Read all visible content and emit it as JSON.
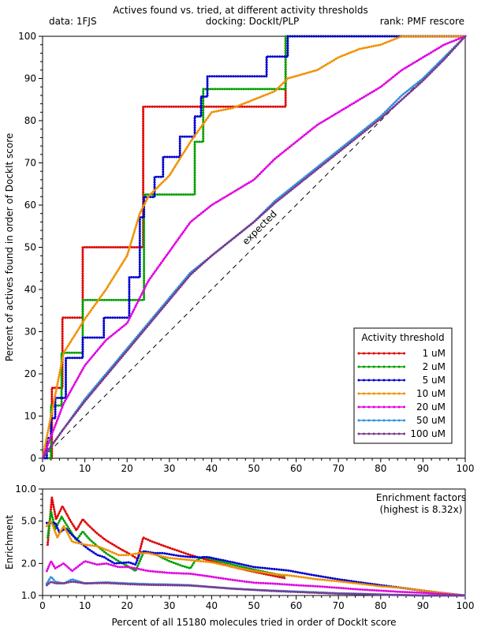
{
  "header": {
    "title": "Actives found vs. tried, at different activity thresholds",
    "data_label": "data: 1FJS",
    "docking_label": "docking: DockIt/PLP",
    "rank_label": "rank: PMF rescore"
  },
  "chart_data": [
    {
      "type": "line",
      "title": "Actives found vs. tried, at different activity thresholds",
      "xlabel": "",
      "ylabel": "Percent of actives found in order of DockIt score",
      "xlim": [
        0,
        100
      ],
      "ylim": [
        0,
        100
      ],
      "xticks": [
        "0",
        "10",
        "20",
        "30",
        "40",
        "50",
        "60",
        "70",
        "80",
        "90",
        "100"
      ],
      "yticks": [
        "0",
        "10",
        "20",
        "30",
        "40",
        "50",
        "60",
        "70",
        "80",
        "90",
        "100"
      ],
      "grid": false,
      "legend_title": "Activity threshold",
      "legend_position": "bottom-right",
      "reference_line": {
        "label": "expected",
        "x": [
          0,
          100
        ],
        "y": [
          0,
          100
        ],
        "style": "dashed"
      },
      "series": [
        {
          "name": "1 uM",
          "color": "#e00000",
          "step": true,
          "x": [
            0,
            0.6,
            2.2,
            4.7,
            9.5,
            22.5,
            23.8,
            57.5,
            100
          ],
          "y": [
            0,
            0,
            16.7,
            33.3,
            50,
            50,
            83.3,
            100,
            100
          ]
        },
        {
          "name": "2 uM",
          "color": "#00a000",
          "step": true,
          "x": [
            0,
            1.2,
            2.0,
            4.5,
            9.5,
            22.0,
            24.0,
            35.0,
            36.0,
            38.0,
            57.5,
            100
          ],
          "y": [
            0,
            0,
            12.5,
            25,
            37.5,
            37.5,
            62.5,
            62.5,
            75,
            87.5,
            100,
            100
          ]
        },
        {
          "name": "5 uM",
          "color": "#0000d0",
          "step": true,
          "x": [
            0,
            1.0,
            2.0,
            3.0,
            5.5,
            9.5,
            14.5,
            20.5,
            23.0,
            24.0,
            26.5,
            28.5,
            32.5,
            36.0,
            37.5,
            39.0,
            53.0,
            58.0,
            100
          ],
          "y": [
            0,
            4.8,
            9.5,
            14.3,
            23.8,
            28.6,
            33.3,
            42.9,
            57.1,
            61.9,
            66.7,
            71.4,
            76.2,
            81.0,
            85.7,
            90.5,
            95.2,
            100,
            100
          ]
        },
        {
          "name": "10 uM",
          "color": "#f09000",
          "step": false,
          "x": [
            0,
            2,
            5,
            10,
            15,
            20,
            23,
            25,
            30,
            35,
            40,
            45,
            50,
            55,
            58,
            65,
            70,
            75,
            80,
            85,
            90,
            95,
            100
          ],
          "y": [
            0,
            10,
            25,
            33,
            40,
            48,
            58,
            62,
            67,
            75,
            82,
            83,
            85,
            87,
            90,
            92,
            95,
            97,
            98,
            100,
            100,
            100,
            100
          ]
        },
        {
          "name": "20 uM",
          "color": "#e000e0",
          "step": false,
          "x": [
            0,
            5,
            10,
            15,
            20,
            25,
            30,
            35,
            40,
            45,
            50,
            55,
            60,
            65,
            70,
            75,
            80,
            85,
            90,
            95,
            100
          ],
          "y": [
            0,
            13,
            22,
            28,
            32,
            42,
            49,
            56,
            60,
            63,
            66,
            71,
            75,
            79,
            82,
            85,
            88,
            92,
            95,
            98,
            100
          ]
        },
        {
          "name": "50 uM",
          "color": "#3090e0",
          "step": false,
          "x": [
            0,
            5,
            10,
            15,
            20,
            25,
            30,
            35,
            40,
            45,
            50,
            55,
            60,
            65,
            70,
            75,
            80,
            85,
            90,
            95,
            100
          ],
          "y": [
            0,
            7,
            14,
            20,
            26,
            32,
            38,
            44,
            48,
            52,
            56,
            61,
            65,
            69,
            73,
            77,
            81,
            86,
            90,
            95,
            100
          ]
        },
        {
          "name": "100 uM",
          "color": "#7a3a8c",
          "step": false,
          "x": [
            0,
            5,
            10,
            15,
            20,
            25,
            30,
            35,
            40,
            45,
            50,
            55,
            60,
            65,
            70,
            75,
            80,
            85,
            90,
            95,
            100
          ],
          "y": [
            0,
            7,
            13.5,
            19.5,
            25.5,
            31.5,
            37.5,
            43.5,
            48,
            52,
            56,
            60.5,
            64.5,
            68.5,
            72.5,
            76.5,
            80.5,
            85,
            89.5,
            94.5,
            100
          ]
        }
      ]
    },
    {
      "type": "line",
      "title": "Enrichment factors",
      "subtitle": "(highest is 8.32x)",
      "xlabel": "Percent of all 15180 molecules tried in order of DockIt score",
      "ylabel": "Enrichment",
      "xlim": [
        0,
        100
      ],
      "ylim": [
        1.0,
        10.0
      ],
      "yscale": "log",
      "xticks": [
        "0",
        "10",
        "20",
        "30",
        "40",
        "50",
        "60",
        "70",
        "80",
        "90",
        "100"
      ],
      "yticks": [
        {
          "value": 1.0,
          "label": "1.0"
        },
        {
          "value": 2.0,
          "label": "2.0"
        },
        {
          "value": 5.0,
          "label": "5.0"
        },
        {
          "value": 10.0,
          "label": "10.0"
        }
      ],
      "grid": false,
      "series": [
        {
          "color": "#e00000",
          "x": [
            1.2,
            2.2,
            3.2,
            4.7,
            6.5,
            8,
            9.5,
            11,
            13,
            15,
            18,
            21,
            22.5,
            23.8,
            26,
            30,
            35,
            40,
            45,
            50,
            55,
            57.5
          ],
          "y": [
            3.0,
            8.3,
            5.2,
            6.9,
            5.1,
            4.1,
            5.2,
            4.5,
            3.8,
            3.3,
            2.8,
            2.4,
            2.2,
            3.5,
            3.2,
            2.8,
            2.4,
            2.1,
            1.85,
            1.67,
            1.52,
            1.45
          ]
        },
        {
          "color": "#00a000",
          "x": [
            1.2,
            2.0,
            3,
            4.5,
            6,
            8,
            9.5,
            11,
            13,
            15,
            18,
            20,
            22,
            24,
            27,
            30,
            33,
            35,
            36,
            38,
            45,
            50,
            57.5
          ],
          "y": [
            3.5,
            6.2,
            4.2,
            5.5,
            4.4,
            3.3,
            4.0,
            3.4,
            2.9,
            2.5,
            2.1,
            1.9,
            1.7,
            2.6,
            2.4,
            2.1,
            1.9,
            1.8,
            2.1,
            2.3,
            1.95,
            1.75,
            1.52
          ]
        },
        {
          "color": "#0000d0",
          "x": [
            1.0,
            2.0,
            3.0,
            4,
            5.5,
            7,
            9.5,
            11,
            13,
            14.5,
            17,
            20.5,
            22,
            23,
            24,
            26.5,
            28.5,
            32.5,
            35,
            37.5,
            39,
            45,
            50,
            53,
            58,
            65,
            70,
            75,
            80,
            85,
            90,
            95,
            100
          ],
          "y": [
            4.8,
            4.8,
            4.8,
            3.9,
            4.3,
            3.7,
            3.0,
            2.7,
            2.4,
            2.3,
            2.0,
            2.05,
            1.95,
            2.5,
            2.6,
            2.5,
            2.5,
            2.35,
            2.3,
            2.28,
            2.3,
            2.05,
            1.85,
            1.8,
            1.72,
            1.53,
            1.42,
            1.33,
            1.25,
            1.18,
            1.11,
            1.05,
            1.0
          ]
        },
        {
          "color": "#f09000",
          "x": [
            1,
            2,
            3.5,
            5,
            7,
            10,
            13,
            15,
            18,
            20,
            23,
            25,
            30,
            35,
            40,
            45,
            50,
            55,
            58,
            65,
            70,
            75,
            80,
            85,
            90,
            95,
            100
          ],
          "y": [
            4.5,
            5.0,
            3.5,
            4.5,
            3.2,
            3.0,
            2.9,
            2.7,
            2.4,
            2.4,
            2.5,
            2.5,
            2.25,
            2.15,
            2.05,
            1.85,
            1.7,
            1.58,
            1.55,
            1.42,
            1.36,
            1.29,
            1.22,
            1.18,
            1.11,
            1.05,
            1.0
          ]
        },
        {
          "color": "#e000e0",
          "x": [
            1,
            2,
            3,
            4,
            5,
            7,
            10,
            13,
            15,
            18,
            20,
            22,
            25,
            30,
            35,
            40,
            45,
            50,
            55,
            60,
            65,
            70,
            75,
            80,
            85,
            90,
            95,
            100
          ],
          "y": [
            1.7,
            2.1,
            1.8,
            1.9,
            2.0,
            1.7,
            2.1,
            1.95,
            2.0,
            1.85,
            1.85,
            1.8,
            1.7,
            1.63,
            1.6,
            1.5,
            1.4,
            1.32,
            1.29,
            1.25,
            1.22,
            1.18,
            1.14,
            1.11,
            1.08,
            1.06,
            1.03,
            1.0
          ]
        },
        {
          "color": "#3090e0",
          "x": [
            1,
            2,
            3,
            5,
            7,
            10,
            15,
            20,
            25,
            30,
            35,
            40,
            45,
            50,
            55,
            60,
            65,
            70,
            75,
            80,
            85,
            90,
            95,
            100
          ],
          "y": [
            1.3,
            1.5,
            1.35,
            1.3,
            1.42,
            1.3,
            1.33,
            1.3,
            1.28,
            1.27,
            1.25,
            1.2,
            1.16,
            1.13,
            1.11,
            1.09,
            1.07,
            1.05,
            1.04,
            1.02,
            1.01,
            1.0,
            1.0,
            1.0
          ]
        },
        {
          "color": "#7a3a8c",
          "x": [
            1,
            2,
            3,
            5,
            7,
            10,
            15,
            20,
            25,
            30,
            35,
            40,
            45,
            50,
            55,
            60,
            65,
            70,
            75,
            80,
            85,
            90,
            95,
            100
          ],
          "y": [
            1.25,
            1.35,
            1.3,
            1.3,
            1.35,
            1.3,
            1.31,
            1.28,
            1.26,
            1.25,
            1.24,
            1.2,
            1.16,
            1.13,
            1.1,
            1.08,
            1.06,
            1.04,
            1.03,
            1.02,
            1.01,
            1.0,
            1.0,
            1.0
          ]
        }
      ]
    }
  ]
}
